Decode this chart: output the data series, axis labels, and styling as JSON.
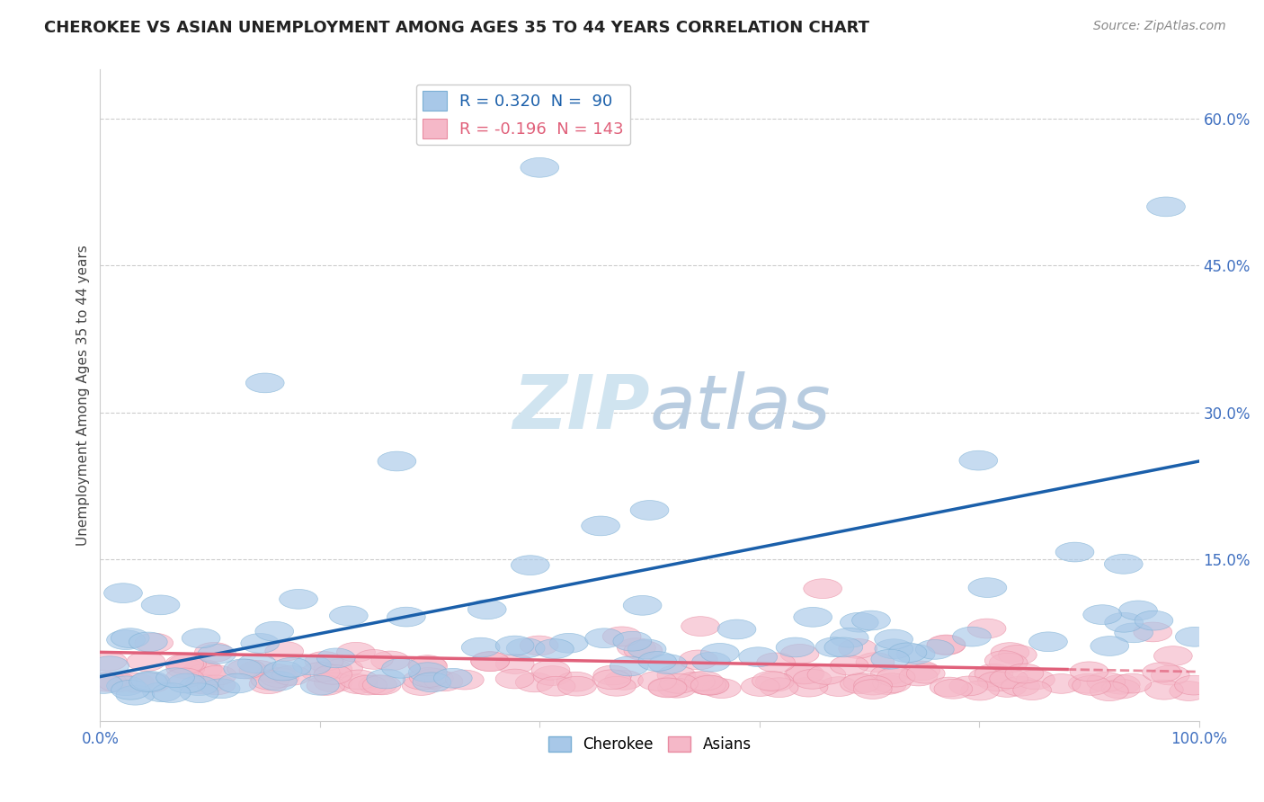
{
  "title": "CHEROKEE VS ASIAN UNEMPLOYMENT AMONG AGES 35 TO 44 YEARS CORRELATION CHART",
  "source": "Source: ZipAtlas.com",
  "ylabel": "Unemployment Among Ages 35 to 44 years",
  "xlim": [
    0,
    100
  ],
  "ylim": [
    -1.5,
    65
  ],
  "cherokee_color": "#a8c8e8",
  "cherokee_edge_color": "#7aafd4",
  "asian_color": "#f5b8c8",
  "asian_edge_color": "#e88aa0",
  "cherokee_line_color": "#1a5faa",
  "asian_line_color": "#e0607a",
  "watermark_color": "#d0e4f0",
  "background_color": "#ffffff",
  "grid_color": "#cccccc",
  "tick_color": "#4070c0",
  "title_color": "#222222",
  "source_color": "#888888",
  "legend_r1_label": "R = 0.320  N =  90",
  "legend_r2_label": "R = -0.196  N = 143",
  "cherokee_line_start_y": 3.0,
  "cherokee_line_end_y": 25.0,
  "asian_line_start_y": 5.5,
  "asian_line_end_y": 3.5,
  "asian_solid_end_x": 88,
  "cherokee_seed": 42,
  "asian_seed": 99
}
